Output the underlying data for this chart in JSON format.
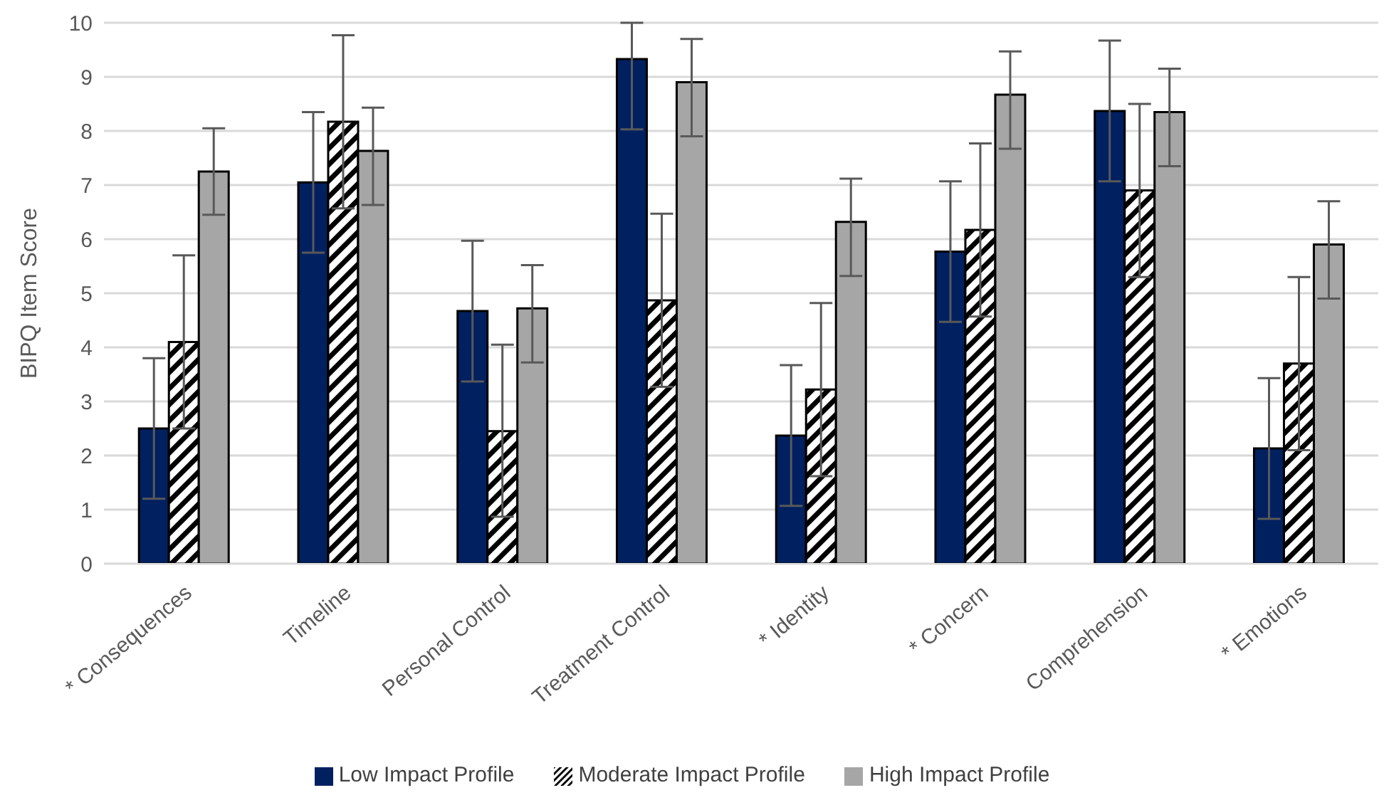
{
  "chart_data": {
    "type": "bar",
    "ylabel": "BIPQ Item Score",
    "categories": [
      "* Consequences",
      "Timeline",
      "Personal Control",
      "Treatment Control",
      "* Identity",
      "* Concern",
      "Comprehension",
      "* Emotions"
    ],
    "series": [
      {
        "name": "Low Impact Profile",
        "color": "#002060",
        "values": [
          2.5,
          7.05,
          4.67,
          9.33,
          2.37,
          5.77,
          8.37,
          2.13
        ],
        "errors": [
          [
            1.2,
            3.8
          ],
          [
            5.75,
            8.35
          ],
          [
            3.37,
            5.97
          ],
          [
            8.03,
            10
          ],
          [
            1.07,
            3.67
          ],
          [
            4.47,
            7.07
          ],
          [
            7.07,
            9.67
          ],
          [
            0.83,
            3.43
          ]
        ]
      },
      {
        "name": "Moderate Impact Profile",
        "color": "#000000",
        "values": [
          4.1,
          8.17,
          2.45,
          4.87,
          3.22,
          6.17,
          6.9,
          3.7
        ],
        "errors": [
          [
            2.5,
            5.7
          ],
          [
            6.57,
            9.77
          ],
          [
            0.87,
            4.05
          ],
          [
            3.27,
            6.47
          ],
          [
            1.62,
            4.82
          ],
          [
            4.57,
            7.77
          ],
          [
            5.3,
            8.5
          ],
          [
            2.1,
            5.3
          ]
        ]
      },
      {
        "name": "High Impact Profile",
        "color": "#a6a6a6",
        "values": [
          7.25,
          7.63,
          4.72,
          8.9,
          6.32,
          8.67,
          8.35,
          5.9
        ],
        "errors": [
          [
            6.45,
            8.05
          ],
          [
            6.63,
            8.43
          ],
          [
            3.72,
            5.52
          ],
          [
            7.9,
            9.7
          ],
          [
            5.32,
            7.12
          ],
          [
            7.67,
            9.47
          ],
          [
            7.35,
            9.15
          ],
          [
            4.9,
            6.7
          ]
        ]
      }
    ],
    "ylim": [
      0,
      10
    ],
    "yticks": [
      0,
      1,
      2,
      3,
      4,
      5,
      6,
      7,
      8,
      9,
      10
    ],
    "grid": "y",
    "legend": "bottom"
  }
}
